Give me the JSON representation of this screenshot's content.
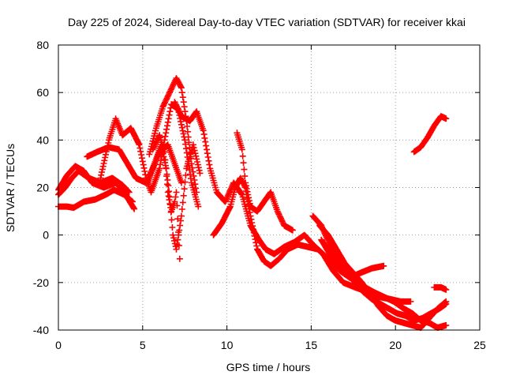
{
  "chart_data": {
    "type": "scatter",
    "title": "Day 225 of 2024, Sidereal Day-to-day VTEC variation (SDTVAR) for receiver kkai",
    "xlabel": "GPS time / hours",
    "ylabel": "SDTVAR / TECUs",
    "xlim": [
      0,
      25
    ],
    "ylim": [
      -40,
      80
    ],
    "xticks": [
      0,
      5,
      10,
      15,
      20,
      25
    ],
    "yticks": [
      -40,
      -20,
      0,
      20,
      40,
      60,
      80
    ],
    "xtick_labels": [
      "0",
      "5",
      "10",
      "15",
      "20",
      "25"
    ],
    "ytick_labels": [
      "-40",
      "-20",
      "0",
      "20",
      "40",
      "60",
      "80"
    ],
    "grid": true,
    "marker": "+",
    "color": "#ff0000",
    "series": [
      {
        "name": "track-1",
        "points": [
          [
            0,
            12
          ],
          [
            0.5,
            12
          ],
          [
            0.9,
            11.5
          ],
          [
            1.5,
            14
          ],
          [
            2.2,
            15
          ],
          [
            2.8,
            17
          ],
          [
            3.3,
            19
          ],
          [
            3.9,
            17
          ],
          [
            4.4,
            14
          ]
        ]
      },
      {
        "name": "track-2",
        "points": [
          [
            0,
            17
          ],
          [
            0.4,
            20
          ],
          [
            0.8,
            24
          ],
          [
            1.2,
            27
          ],
          [
            1.8,
            24
          ],
          [
            2.5,
            22
          ],
          [
            3.2,
            24
          ],
          [
            3.8,
            21
          ],
          [
            4.2,
            18
          ]
        ]
      },
      {
        "name": "track-3",
        "points": [
          [
            0,
            19
          ],
          [
            0.5,
            25
          ],
          [
            1.0,
            29
          ],
          [
            1.5,
            27
          ],
          [
            2.0,
            22
          ],
          [
            2.7,
            20
          ],
          [
            3.4,
            22
          ],
          [
            3.9,
            18
          ],
          [
            4.5,
            11
          ]
        ]
      },
      {
        "name": "track-4",
        "points": [
          [
            1.7,
            33
          ],
          [
            2.3,
            35
          ],
          [
            3.0,
            37
          ],
          [
            3.6,
            36
          ],
          [
            4.1,
            30
          ],
          [
            4.6,
            24
          ],
          [
            5.2,
            22
          ],
          [
            5.6,
            28
          ],
          [
            6.0,
            35
          ],
          [
            6.5,
            38
          ],
          [
            6.9,
            30
          ],
          [
            7.3,
            22
          ]
        ]
      },
      {
        "name": "track-5",
        "points": [
          [
            2.5,
            24
          ],
          [
            3.0,
            40
          ],
          [
            3.4,
            49
          ],
          [
            3.8,
            42
          ],
          [
            4.3,
            45
          ],
          [
            4.8,
            38
          ],
          [
            5.2,
            24
          ],
          [
            5.5,
            18
          ],
          [
            6.0,
            28
          ],
          [
            6.3,
            40
          ],
          [
            6.7,
            55
          ],
          [
            7.1,
            53
          ],
          [
            7.5,
            40
          ],
          [
            7.9,
            22
          ],
          [
            8.3,
            12
          ]
        ]
      },
      {
        "name": "track-6",
        "points": [
          [
            5.4,
            34
          ],
          [
            5.8,
            45
          ],
          [
            6.2,
            54
          ],
          [
            6.6,
            60
          ],
          [
            7.0,
            66
          ],
          [
            7.3,
            62
          ],
          [
            7.6,
            48
          ],
          [
            7.9,
            30
          ],
          [
            8.2,
            18
          ]
        ]
      },
      {
        "name": "track-7",
        "points": [
          [
            5.3,
            22
          ],
          [
            5.7,
            30
          ],
          [
            6.1,
            38
          ],
          [
            6.4,
            28
          ],
          [
            6.6,
            16
          ],
          [
            6.8,
            0
          ],
          [
            7.0,
            -6
          ],
          [
            7.3,
            8
          ],
          [
            7.6,
            28
          ],
          [
            8.0,
            38
          ],
          [
            8.4,
            26
          ]
        ]
      },
      {
        "name": "track-8",
        "points": [
          [
            5.6,
            36
          ],
          [
            6.0,
            42
          ],
          [
            6.3,
            35
          ],
          [
            6.5,
            18
          ],
          [
            6.7,
            10
          ],
          [
            6.9,
            14
          ],
          [
            7.0,
            18
          ],
          [
            7.2,
            -10
          ]
        ]
      },
      {
        "name": "track-9",
        "points": [
          [
            6.9,
            56
          ],
          [
            7.3,
            50
          ],
          [
            7.8,
            48
          ],
          [
            8.2,
            52
          ],
          [
            8.6,
            44
          ],
          [
            9.0,
            28
          ],
          [
            9.4,
            18
          ],
          [
            9.9,
            14
          ],
          [
            10.4,
            22
          ],
          [
            10.9,
            17
          ],
          [
            11.4,
            4
          ],
          [
            11.9,
            -2
          ],
          [
            12.3,
            -6
          ],
          [
            12.8,
            -8
          ],
          [
            13.4,
            -5
          ],
          [
            14.0,
            -3
          ],
          [
            14.6,
            0
          ],
          [
            15.1,
            -4
          ],
          [
            15.7,
            -8
          ],
          [
            16.3,
            -15
          ],
          [
            16.9,
            -20
          ],
          [
            17.6,
            -22
          ],
          [
            18.4,
            -24
          ],
          [
            19.0,
            -26
          ],
          [
            19.7,
            -27
          ],
          [
            20.3,
            -28
          ],
          [
            20.9,
            -28
          ]
        ]
      },
      {
        "name": "track-10",
        "points": [
          [
            9.2,
            0
          ],
          [
            9.7,
            5
          ],
          [
            10.2,
            12
          ],
          [
            10.5,
            20
          ],
          [
            10.8,
            24
          ],
          [
            11.1,
            20
          ],
          [
            11.4,
            8
          ],
          [
            11.8,
            -6
          ],
          [
            12.2,
            -11
          ],
          [
            12.6,
            -13
          ],
          [
            13.1,
            -10
          ],
          [
            13.6,
            -6
          ],
          [
            14.2,
            -4
          ],
          [
            14.8,
            -5
          ],
          [
            15.4,
            -6
          ],
          [
            16.0,
            -10
          ],
          [
            16.7,
            -15
          ],
          [
            17.3,
            -18
          ],
          [
            17.9,
            -16
          ],
          [
            18.6,
            -14
          ],
          [
            19.3,
            -13
          ]
        ]
      },
      {
        "name": "track-11",
        "points": [
          [
            10.6,
            43
          ],
          [
            10.9,
            36
          ],
          [
            11.1,
            22
          ],
          [
            11.4,
            12
          ],
          [
            11.8,
            10
          ],
          [
            12.2,
            14
          ],
          [
            12.6,
            18
          ],
          [
            13.0,
            10
          ],
          [
            13.4,
            4
          ],
          [
            13.9,
            2
          ]
        ]
      },
      {
        "name": "track-12",
        "points": [
          [
            15.1,
            8
          ],
          [
            15.6,
            4
          ],
          [
            16.1,
            -4
          ],
          [
            16.6,
            -10
          ],
          [
            17.1,
            -14
          ],
          [
            17.6,
            -18
          ],
          [
            18.2,
            -22
          ],
          [
            18.7,
            -24
          ],
          [
            19.3,
            -26
          ],
          [
            19.9,
            -28
          ],
          [
            20.5,
            -31
          ],
          [
            21.0,
            -33
          ],
          [
            21.5,
            -36
          ],
          [
            22.0,
            -37
          ],
          [
            22.5,
            -39
          ],
          [
            23.0,
            -38
          ]
        ]
      },
      {
        "name": "track-13",
        "points": [
          [
            15.5,
            4
          ],
          [
            16.0,
            0
          ],
          [
            16.5,
            -6
          ],
          [
            17.0,
            -12
          ],
          [
            17.5,
            -16
          ],
          [
            18.0,
            -20
          ],
          [
            18.5,
            -25
          ],
          [
            19.0,
            -30
          ],
          [
            19.5,
            -34
          ],
          [
            20.0,
            -36
          ],
          [
            20.5,
            -37
          ],
          [
            21.0,
            -38
          ],
          [
            21.5,
            -39
          ],
          [
            22.0,
            -35
          ],
          [
            22.5,
            -31
          ],
          [
            23.0,
            -28
          ]
        ]
      },
      {
        "name": "track-14",
        "points": [
          [
            15.6,
            -2
          ],
          [
            16.1,
            -8
          ],
          [
            16.6,
            -12
          ],
          [
            17.1,
            -16
          ],
          [
            17.6,
            -20
          ],
          [
            18.1,
            -24
          ],
          [
            18.6,
            -27
          ],
          [
            19.1,
            -29
          ],
          [
            19.6,
            -31
          ],
          [
            20.1,
            -33
          ],
          [
            20.6,
            -34
          ],
          [
            21.1,
            -36
          ],
          [
            21.6,
            -35
          ],
          [
            22.1,
            -33
          ],
          [
            22.6,
            -31
          ],
          [
            23.0,
            -29
          ]
        ]
      },
      {
        "name": "track-15",
        "points": [
          [
            21.1,
            35
          ],
          [
            21.5,
            37
          ],
          [
            21.9,
            41
          ],
          [
            22.3,
            46
          ],
          [
            22.7,
            50
          ],
          [
            23.0,
            49
          ]
        ]
      },
      {
        "name": "track-16",
        "points": [
          [
            22.3,
            -22
          ],
          [
            22.7,
            -22
          ],
          [
            23.0,
            -23
          ]
        ]
      }
    ]
  }
}
